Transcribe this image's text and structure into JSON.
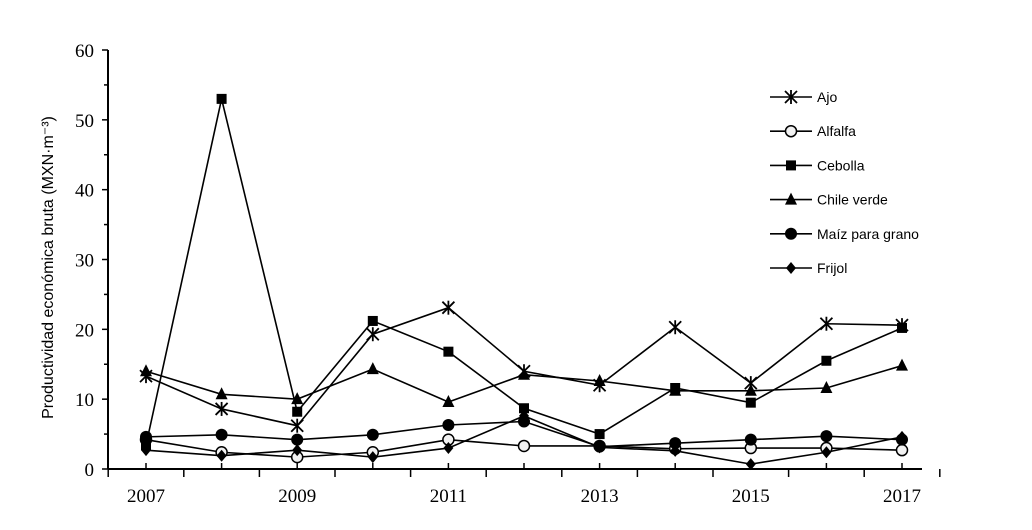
{
  "chart_data": {
    "type": "line",
    "title": "",
    "xlabel": "",
    "ylabel": "Productividad económica bruta (MXN·m⁻³)",
    "x": [
      2007,
      2008,
      2009,
      2010,
      2011,
      2012,
      2013,
      2014,
      2015,
      2016,
      2017
    ],
    "x_tick_labels": [
      "2007",
      "2009",
      "2011",
      "2013",
      "2015",
      "2017"
    ],
    "ylim": [
      0,
      60
    ],
    "y_ticks": [
      0,
      10,
      20,
      30,
      40,
      50,
      60
    ],
    "grid": false,
    "legend_position": "top-right",
    "series": [
      {
        "name": "Ajo",
        "marker": "asterisk",
        "values": [
          13.3,
          8.6,
          6.2,
          19.3,
          23.1,
          14.0,
          12.0,
          20.3,
          12.3,
          20.8,
          20.6
        ]
      },
      {
        "name": "Alfalfa",
        "marker": "open-circle",
        "values": [
          4.2,
          2.4,
          1.7,
          2.4,
          4.2,
          3.3,
          3.3,
          2.9,
          3.0,
          3.0,
          2.7
        ]
      },
      {
        "name": "Cebolla",
        "marker": "square",
        "values": [
          3.4,
          53.0,
          8.2,
          21.2,
          16.8,
          8.7,
          5.0,
          11.6,
          9.5,
          15.5,
          20.2
        ]
      },
      {
        "name": "Chile verde",
        "marker": "triangle",
        "values": [
          14.0,
          10.7,
          10.0,
          14.3,
          9.6,
          13.5,
          12.6,
          11.2,
          11.2,
          11.6,
          14.8
        ]
      },
      {
        "name": "Maíz para grano",
        "marker": "circle",
        "values": [
          4.6,
          4.9,
          4.2,
          4.9,
          6.3,
          6.8,
          3.2,
          3.7,
          4.2,
          4.7,
          4.2
        ]
      },
      {
        "name": "Frijol",
        "marker": "diamond",
        "values": [
          2.7,
          1.9,
          2.7,
          1.7,
          3.0,
          7.6,
          3.1,
          2.6,
          0.7,
          2.4,
          4.6
        ]
      }
    ]
  }
}
